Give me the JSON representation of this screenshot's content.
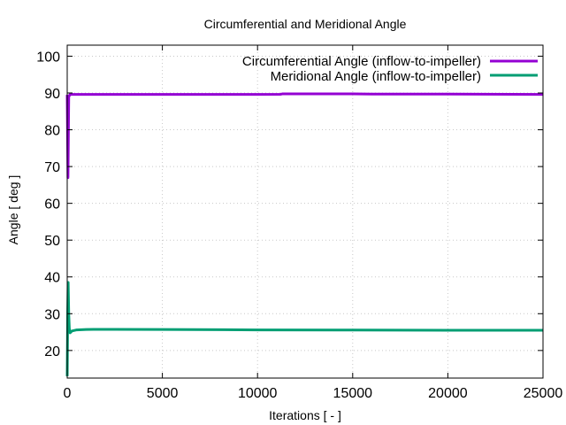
{
  "chart_data": {
    "type": "line",
    "title": "Circumferential and Meridional Angle",
    "xlabel": "Iterations [ - ]",
    "ylabel": "Angle [ deg ]",
    "xlim": [
      0,
      25000
    ],
    "ylim": [
      12.5,
      103
    ],
    "xticks": [
      0,
      5000,
      10000,
      15000,
      20000,
      25000
    ],
    "yticks": [
      20,
      30,
      40,
      50,
      60,
      70,
      80,
      90,
      100
    ],
    "grid": true,
    "legend_position": "top-right",
    "series": [
      {
        "name": "Circumferential Angle (inflow-to-impeller)",
        "color": "#9400d3",
        "points": [
          [
            0,
            89.5
          ],
          [
            40,
            67
          ],
          [
            80,
            89.0
          ],
          [
            150,
            89.6
          ],
          [
            300,
            89.6
          ],
          [
            1000,
            89.6
          ],
          [
            5000,
            89.6
          ],
          [
            10000,
            89.6
          ],
          [
            11200,
            89.65
          ],
          [
            11300,
            89.75
          ],
          [
            15000,
            89.75
          ],
          [
            16000,
            89.7
          ],
          [
            20000,
            89.7
          ],
          [
            25000,
            89.6
          ]
        ]
      },
      {
        "name": "Meridional Angle (inflow-to-impeller)",
        "color": "#009e73",
        "points": [
          [
            0,
            13
          ],
          [
            25,
            30
          ],
          [
            50,
            38.5
          ],
          [
            80,
            30
          ],
          [
            110,
            26
          ],
          [
            150,
            24.8
          ],
          [
            250,
            25.3
          ],
          [
            500,
            25.6
          ],
          [
            1000,
            25.7
          ],
          [
            1400,
            25.75
          ],
          [
            5000,
            25.7
          ],
          [
            10000,
            25.6
          ],
          [
            15000,
            25.55
          ],
          [
            20000,
            25.5
          ],
          [
            25000,
            25.5
          ]
        ]
      }
    ]
  }
}
